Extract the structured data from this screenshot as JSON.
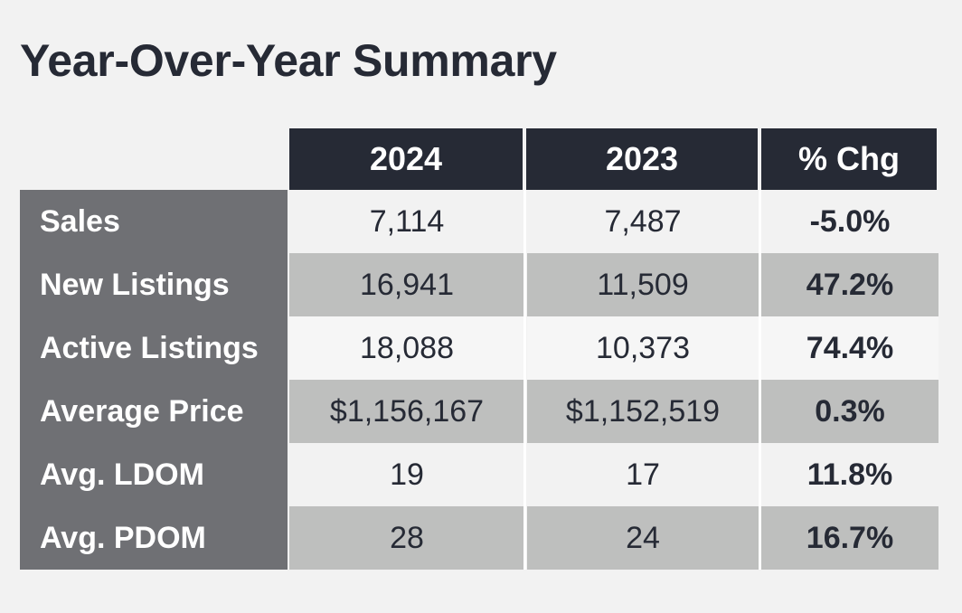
{
  "title": "Year-Over-Year Summary",
  "headers": [
    "2024",
    "2023",
    "% Chg"
  ],
  "rows": [
    {
      "label": "Sales",
      "y2024": "7,114",
      "y2023": "7,487",
      "chg": "-5.0%"
    },
    {
      "label": "New Listings",
      "y2024": "16,941",
      "y2023": "11,509",
      "chg": "47.2%"
    },
    {
      "label": "Active Listings",
      "y2024": "18,088",
      "y2023": "10,373",
      "chg": "74.4%"
    },
    {
      "label": "Average Price",
      "y2024": "$1,156,167",
      "y2023": "$1,152,519",
      "chg": "0.3%"
    },
    {
      "label": "Avg. LDOM",
      "y2024": "19",
      "y2023": "17",
      "chg": "11.8%"
    },
    {
      "label": "Avg. PDOM",
      "y2024": "28",
      "y2023": "24",
      "chg": "16.7%"
    }
  ],
  "colors": {
    "header_bg": "#262a35",
    "label_bg": "#6f7074",
    "band_light": "#f2f2f2",
    "band_dark": "#bebfbe",
    "title_text": "#262a35"
  }
}
